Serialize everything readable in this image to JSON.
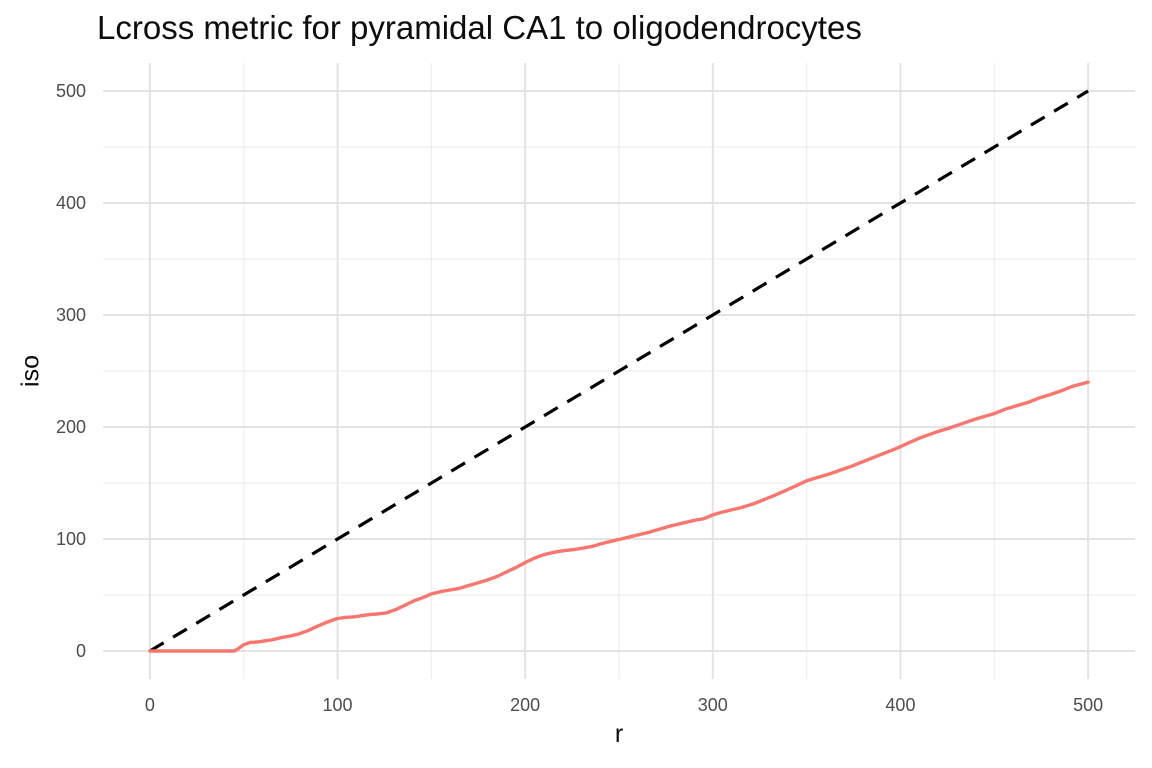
{
  "figure": {
    "background_color": "#FFFFFF"
  },
  "style": {
    "grid_major_color": "#E3E3E3",
    "grid_minor_color": "#EFEFEF",
    "tick_label_color": "#4D4D4D",
    "title_color": "#0D0D0D",
    "theoretical_line_color": "#000000",
    "observed_line_color": "#F8766D"
  },
  "chart_data": {
    "type": "line",
    "title": "Lcross metric for pyramidal CA1 to oligodendrocytes",
    "xlabel": "r",
    "ylabel": "iso",
    "xlim": [
      -25,
      525
    ],
    "ylim": [
      -25,
      525
    ],
    "x_ticks": [
      0,
      100,
      200,
      300,
      400,
      500
    ],
    "y_ticks": [
      0,
      100,
      200,
      300,
      400,
      500
    ],
    "x_minor": [
      50,
      150,
      250,
      350,
      450
    ],
    "y_minor": [
      50,
      150,
      250,
      350,
      450
    ],
    "grid": "major+minor",
    "legend_position": "none",
    "series": [
      {
        "name": "theoretical",
        "line_style": "dashed",
        "color": "#000000",
        "width": 3.2,
        "points": [
          [
            0,
            0
          ],
          [
            500,
            500
          ]
        ]
      },
      {
        "name": "iso",
        "line_style": "solid",
        "color": "#F8766D",
        "width": 3.4,
        "points": [
          [
            0,
            0
          ],
          [
            8,
            0
          ],
          [
            16,
            0
          ],
          [
            24,
            0
          ],
          [
            32,
            0
          ],
          [
            40,
            0
          ],
          [
            45,
            0
          ],
          [
            47,
            2
          ],
          [
            50,
            5.5
          ],
          [
            53,
            7.5
          ],
          [
            57,
            8
          ],
          [
            61,
            9
          ],
          [
            65,
            10
          ],
          [
            70,
            12
          ],
          [
            75,
            13.5
          ],
          [
            79,
            15
          ],
          [
            84,
            18
          ],
          [
            89,
            22
          ],
          [
            94,
            25.5
          ],
          [
            100,
            29
          ],
          [
            104,
            30
          ],
          [
            109,
            30.5
          ],
          [
            113,
            31.5
          ],
          [
            117,
            32.5
          ],
          [
            121,
            33
          ],
          [
            126,
            34
          ],
          [
            131,
            37
          ],
          [
            136,
            41
          ],
          [
            141,
            45
          ],
          [
            146,
            48
          ],
          [
            150,
            51
          ],
          [
            155,
            53
          ],
          [
            160,
            54.5
          ],
          [
            165,
            56
          ],
          [
            170,
            58.5
          ],
          [
            175,
            61
          ],
          [
            180,
            63.5
          ],
          [
            185,
            66.5
          ],
          [
            190,
            70.5
          ],
          [
            195,
            74.5
          ],
          [
            200,
            79
          ],
          [
            205,
            83
          ],
          [
            210,
            86
          ],
          [
            215,
            88
          ],
          [
            220,
            89.5
          ],
          [
            226,
            90.5
          ],
          [
            231,
            92
          ],
          [
            236,
            93.5
          ],
          [
            241,
            96
          ],
          [
            246,
            98
          ],
          [
            251,
            100
          ],
          [
            256,
            102
          ],
          [
            261,
            104
          ],
          [
            266,
            106
          ],
          [
            271,
            108.5
          ],
          [
            276,
            111
          ],
          [
            281,
            113
          ],
          [
            286,
            115
          ],
          [
            291,
            117
          ],
          [
            295,
            118
          ],
          [
            300,
            121.5
          ],
          [
            305,
            124
          ],
          [
            310,
            126
          ],
          [
            315,
            128
          ],
          [
            321,
            131
          ],
          [
            327,
            135
          ],
          [
            333,
            139
          ],
          [
            339,
            143.5
          ],
          [
            345,
            148
          ],
          [
            350,
            152
          ],
          [
            356,
            155
          ],
          [
            362,
            158
          ],
          [
            368,
            161.5
          ],
          [
            374,
            165
          ],
          [
            380,
            169
          ],
          [
            386,
            173
          ],
          [
            392,
            177
          ],
          [
            398,
            181
          ],
          [
            404,
            185.5
          ],
          [
            410,
            190
          ],
          [
            415,
            193
          ],
          [
            420,
            196
          ],
          [
            426,
            199
          ],
          [
            432,
            202.5
          ],
          [
            438,
            206
          ],
          [
            444,
            209
          ],
          [
            450,
            212
          ],
          [
            456,
            216
          ],
          [
            462,
            219
          ],
          [
            468,
            222
          ],
          [
            474,
            226
          ],
          [
            480,
            229
          ],
          [
            486,
            232.5
          ],
          [
            492,
            236.5
          ],
          [
            500,
            240
          ]
        ]
      }
    ]
  }
}
